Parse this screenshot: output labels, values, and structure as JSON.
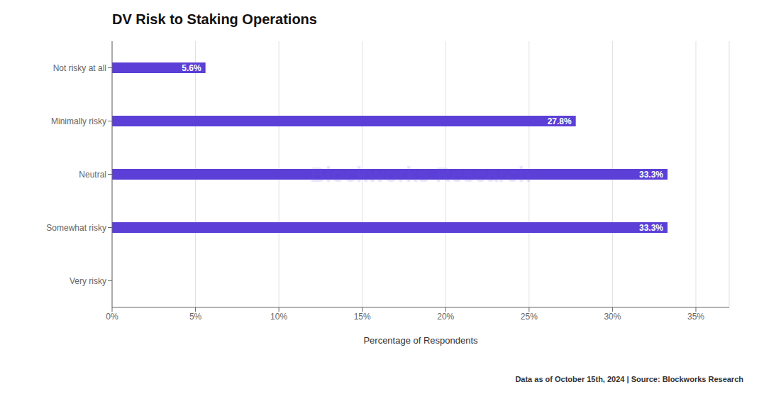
{
  "chart_data": {
    "type": "bar",
    "title": "DV Risk to Staking Operations",
    "orientation": "horizontal",
    "categories": [
      "Very risky",
      "Somewhat risky",
      "Neutral",
      "Minimally risky",
      "Not risky at all"
    ],
    "values": [
      0.0,
      33.3,
      33.3,
      27.8,
      5.6
    ],
    "data_labels": true,
    "value_labels": [
      null,
      "33.3%",
      "33.3%",
      "27.8%",
      "5.6%"
    ],
    "color": "#5b3fd6",
    "xlabel": "Percentage of Respondents",
    "xlim": [
      0,
      37
    ],
    "xticks": [
      {
        "value": 0,
        "label": "0%"
      },
      {
        "value": 5,
        "label": "5%"
      },
      {
        "value": 10,
        "label": "10%"
      },
      {
        "value": 15,
        "label": "15%"
      },
      {
        "value": 20,
        "label": "20%"
      },
      {
        "value": 25,
        "label": "25%"
      },
      {
        "value": 30,
        "label": "30%"
      },
      {
        "value": 35,
        "label": "35%"
      }
    ],
    "grid": true,
    "watermark": "Blockworks Research",
    "footnote": "Data as of October 15th, 2024 | Source: Blockworks Research"
  }
}
